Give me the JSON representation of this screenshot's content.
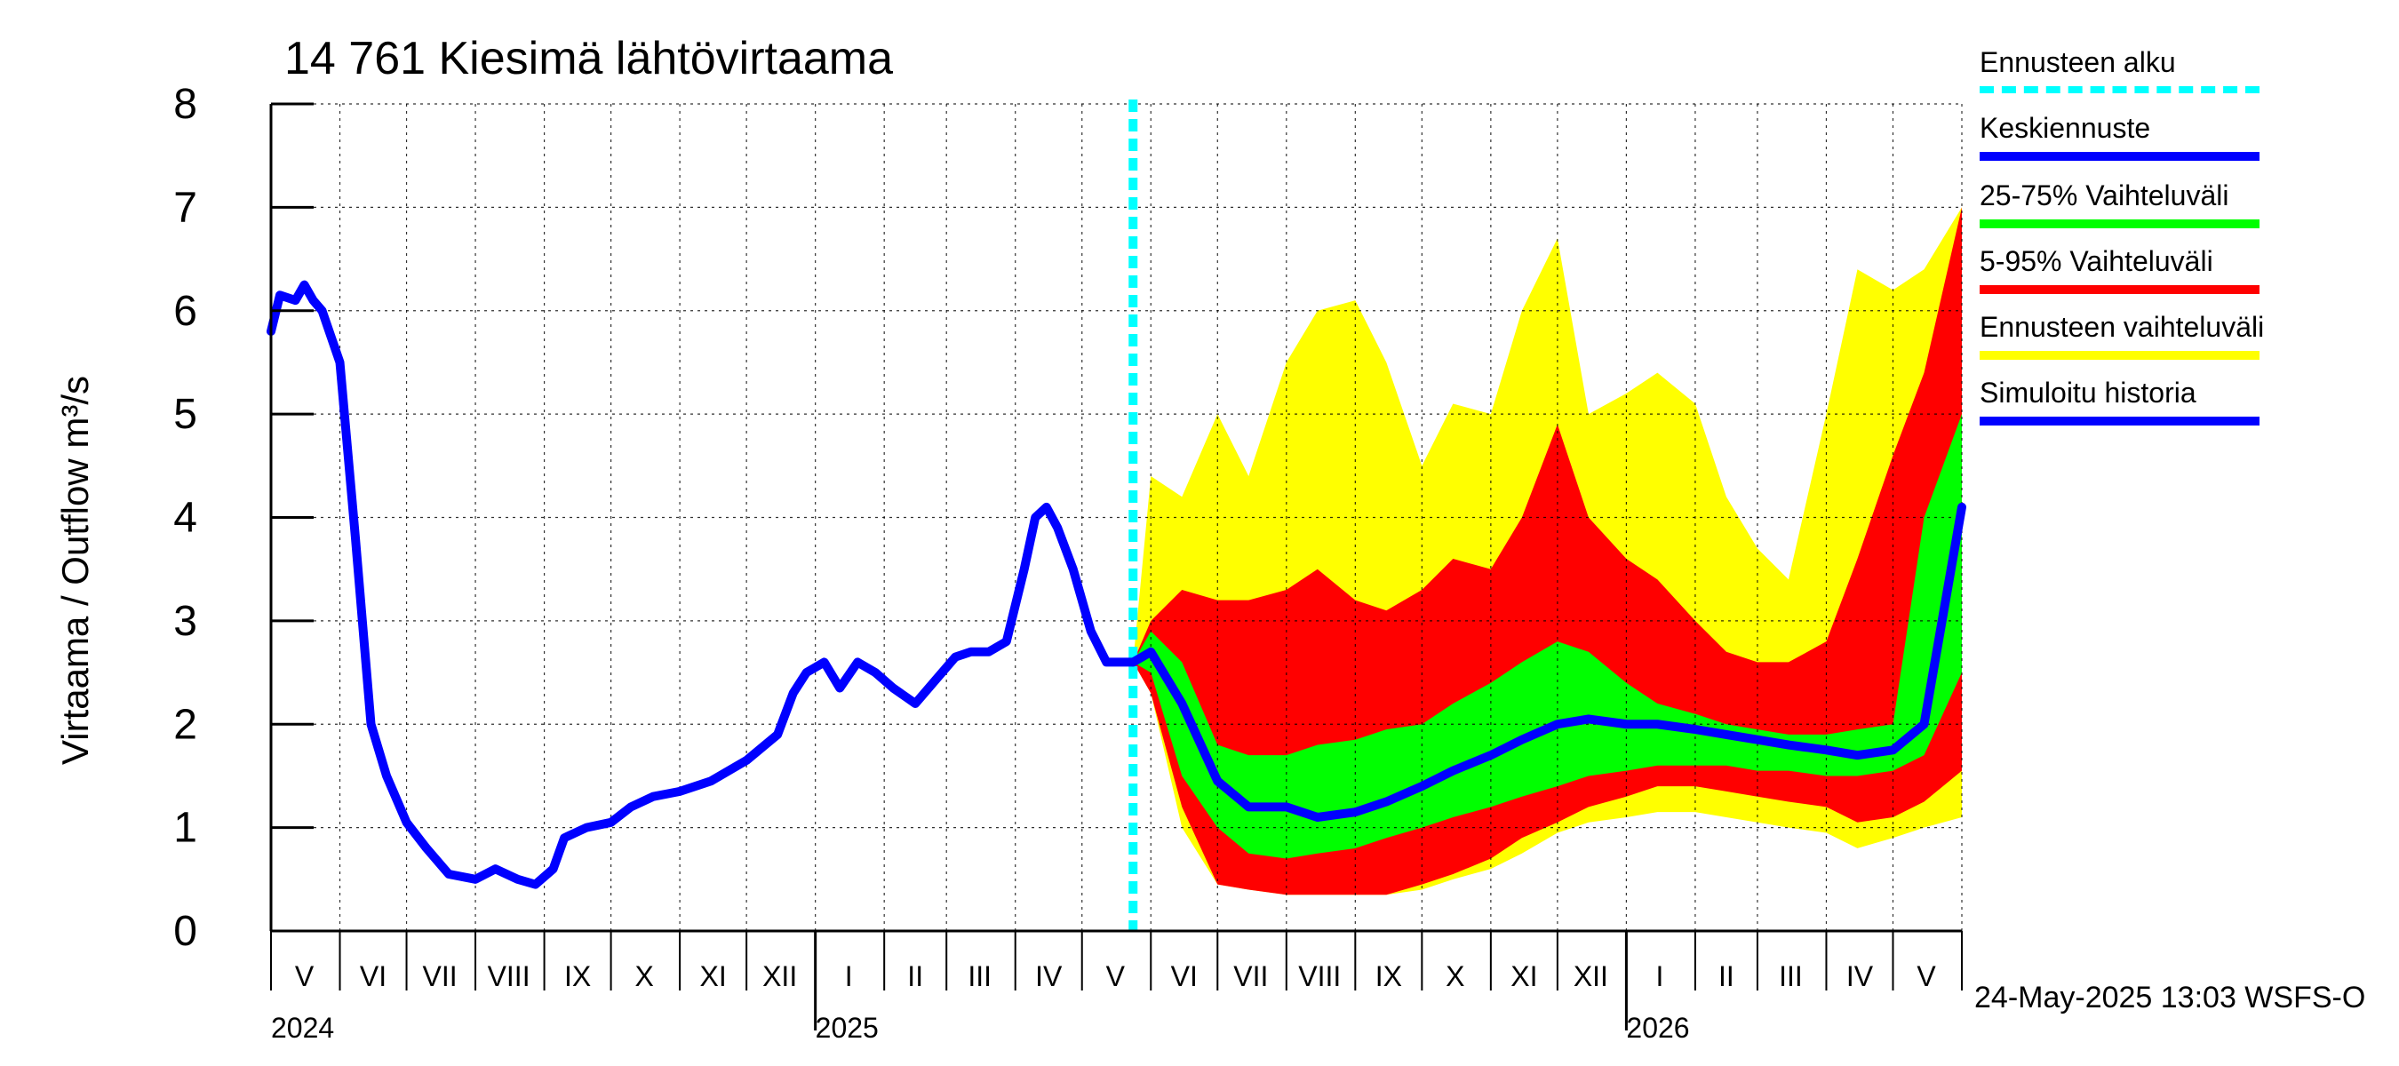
{
  "chart_data": {
    "type": "area",
    "title": "14 761 Kiesimä lähtövirtaama",
    "ylabel": "Virtaama / Outflow    m³/s",
    "ylim": [
      0,
      8
    ],
    "yticks": [
      "0",
      "1",
      "2",
      "3",
      "4",
      "5",
      "6",
      "7",
      "8"
    ],
    "xlim": [
      "2024-05-01",
      "2026-06-01"
    ],
    "grid": true,
    "legend_position": "right",
    "forecast_start": "2025-05-24",
    "month_labels": [
      {
        "label": "V",
        "date": "2024-05-16"
      },
      {
        "label": "VI",
        "date": "2024-06-16"
      },
      {
        "label": "VII",
        "date": "2024-07-16"
      },
      {
        "label": "VIII",
        "date": "2024-08-16"
      },
      {
        "label": "IX",
        "date": "2024-09-16"
      },
      {
        "label": "X",
        "date": "2024-10-16"
      },
      {
        "label": "XI",
        "date": "2024-11-16"
      },
      {
        "label": "XII",
        "date": "2024-12-16"
      },
      {
        "label": "I",
        "date": "2025-01-16"
      },
      {
        "label": "II",
        "date": "2025-02-15"
      },
      {
        "label": "III",
        "date": "2025-03-16"
      },
      {
        "label": "IV",
        "date": "2025-04-16"
      },
      {
        "label": "V",
        "date": "2025-05-16"
      },
      {
        "label": "VI",
        "date": "2025-06-16"
      },
      {
        "label": "VII",
        "date": "2025-07-16"
      },
      {
        "label": "VIII",
        "date": "2025-08-16"
      },
      {
        "label": "IX",
        "date": "2025-09-16"
      },
      {
        "label": "X",
        "date": "2025-10-16"
      },
      {
        "label": "XI",
        "date": "2025-11-16"
      },
      {
        "label": "XII",
        "date": "2025-12-16"
      },
      {
        "label": "I",
        "date": "2026-01-16"
      },
      {
        "label": "II",
        "date": "2026-02-15"
      },
      {
        "label": "III",
        "date": "2026-03-16"
      },
      {
        "label": "IV",
        "date": "2026-04-16"
      },
      {
        "label": "V",
        "date": "2026-05-16"
      }
    ],
    "year_labels": [
      {
        "label": "2024",
        "date": "2024-05-01"
      },
      {
        "label": "2025",
        "date": "2025-01-01"
      },
      {
        "label": "2026",
        "date": "2026-01-01"
      }
    ],
    "forecast_dates": [
      "2025-05-24",
      "2025-06-01",
      "2025-06-15",
      "2025-07-01",
      "2025-07-15",
      "2025-08-01",
      "2025-08-15",
      "2025-09-01",
      "2025-09-15",
      "2025-10-01",
      "2025-10-15",
      "2025-11-01",
      "2025-11-15",
      "2025-12-01",
      "2025-12-15",
      "2026-01-01",
      "2026-01-15",
      "2026-02-01",
      "2026-02-15",
      "2026-03-01",
      "2026-03-15",
      "2026-04-01",
      "2026-04-15",
      "2026-05-01",
      "2026-05-15",
      "2026-06-01"
    ],
    "series": [
      {
        "name": "Ennusteen vaihteluväli",
        "color": "#ffff00",
        "kind": "band",
        "lower": [
          2.6,
          2.3,
          1.0,
          0.45,
          0.4,
          0.35,
          0.35,
          0.35,
          0.35,
          0.4,
          0.5,
          0.6,
          0.75,
          0.95,
          1.05,
          1.1,
          1.15,
          1.15,
          1.1,
          1.05,
          1.0,
          0.95,
          0.8,
          0.9,
          1.0,
          1.1
        ],
        "upper": [
          2.6,
          4.4,
          4.2,
          5.0,
          4.4,
          5.5,
          6.0,
          6.1,
          5.5,
          4.5,
          5.1,
          5.0,
          6.0,
          6.7,
          5.0,
          5.2,
          5.4,
          5.1,
          4.2,
          3.7,
          3.4,
          5.0,
          6.4,
          6.2,
          6.4,
          7.0
        ]
      },
      {
        "name": "5-95% Vaihteluväli",
        "color": "#ff0000",
        "kind": "band",
        "lower": [
          2.6,
          2.3,
          1.2,
          0.45,
          0.4,
          0.35,
          0.35,
          0.35,
          0.35,
          0.45,
          0.55,
          0.7,
          0.9,
          1.05,
          1.2,
          1.3,
          1.4,
          1.4,
          1.35,
          1.3,
          1.25,
          1.2,
          1.05,
          1.1,
          1.25,
          1.55
        ],
        "upper": [
          2.6,
          3.0,
          3.3,
          3.2,
          3.2,
          3.3,
          3.5,
          3.2,
          3.1,
          3.3,
          3.6,
          3.5,
          4.0,
          4.9,
          4.0,
          3.6,
          3.4,
          3.0,
          2.7,
          2.6,
          2.6,
          2.8,
          3.6,
          4.6,
          5.4,
          7.0
        ]
      },
      {
        "name": "25-75% Vaihteluväli",
        "color": "#00ff00",
        "kind": "band",
        "lower": [
          2.6,
          2.5,
          1.5,
          1.0,
          0.75,
          0.7,
          0.75,
          0.8,
          0.9,
          1.0,
          1.1,
          1.2,
          1.3,
          1.4,
          1.5,
          1.55,
          1.6,
          1.6,
          1.6,
          1.55,
          1.55,
          1.5,
          1.5,
          1.55,
          1.7,
          2.5
        ],
        "upper": [
          2.6,
          2.9,
          2.6,
          1.8,
          1.7,
          1.7,
          1.8,
          1.85,
          1.95,
          2.0,
          2.2,
          2.4,
          2.6,
          2.8,
          2.7,
          2.4,
          2.2,
          2.1,
          2.0,
          1.95,
          1.9,
          1.9,
          1.95,
          2.0,
          4.0,
          5.0
        ]
      },
      {
        "name": "Keskiennuste",
        "color": "#0000ff",
        "kind": "line",
        "values": [
          2.6,
          2.7,
          2.2,
          1.45,
          1.2,
          1.2,
          1.1,
          1.15,
          1.25,
          1.4,
          1.55,
          1.7,
          1.85,
          2.0,
          2.05,
          2.0,
          2.0,
          1.95,
          1.9,
          1.85,
          1.8,
          1.75,
          1.7,
          1.75,
          2.0,
          4.1
        ]
      },
      {
        "name": "Simuloitu historia",
        "color": "#0000ff",
        "kind": "line",
        "dates": [
          "2024-05-01",
          "2024-05-05",
          "2024-05-12",
          "2024-05-16",
          "2024-05-20",
          "2024-05-24",
          "2024-06-01",
          "2024-06-08",
          "2024-06-15",
          "2024-06-22",
          "2024-07-01",
          "2024-07-10",
          "2024-07-20",
          "2024-08-01",
          "2024-08-10",
          "2024-08-20",
          "2024-08-28",
          "2024-09-05",
          "2024-09-10",
          "2024-09-20",
          "2024-10-01",
          "2024-10-10",
          "2024-10-20",
          "2024-11-01",
          "2024-11-15",
          "2024-12-01",
          "2024-12-15",
          "2024-12-22",
          "2024-12-28",
          "2025-01-05",
          "2025-01-12",
          "2025-01-20",
          "2025-01-28",
          "2025-02-05",
          "2025-02-15",
          "2025-02-25",
          "2025-03-05",
          "2025-03-12",
          "2025-03-20",
          "2025-03-28",
          "2025-04-05",
          "2025-04-10",
          "2025-04-15",
          "2025-04-20",
          "2025-04-27",
          "2025-05-05",
          "2025-05-12",
          "2025-05-18",
          "2025-05-24"
        ],
        "values": [
          5.8,
          6.15,
          6.1,
          6.25,
          6.1,
          6.0,
          5.5,
          3.8,
          2.0,
          1.5,
          1.05,
          0.8,
          0.55,
          0.5,
          0.6,
          0.5,
          0.45,
          0.6,
          0.9,
          1.0,
          1.05,
          1.2,
          1.3,
          1.35,
          1.45,
          1.65,
          1.9,
          2.3,
          2.5,
          2.6,
          2.35,
          2.6,
          2.5,
          2.35,
          2.2,
          2.45,
          2.65,
          2.7,
          2.7,
          2.8,
          3.5,
          4.0,
          4.1,
          3.9,
          3.5,
          2.9,
          2.6,
          2.6,
          2.6
        ]
      }
    ]
  },
  "legend": [
    {
      "label": "Ennusteen alku",
      "color": "#00ffff",
      "style": "dashed"
    },
    {
      "label": "Keskiennuste",
      "color": "#0000ff",
      "style": "solid"
    },
    {
      "label": "25-75% Vaihteluväli",
      "color": "#00ff00",
      "style": "solid"
    },
    {
      "label": "5-95% Vaihteluväli",
      "color": "#ff0000",
      "style": "solid"
    },
    {
      "label": "Ennusteen vaihteluväli",
      "color": "#ffff00",
      "style": "solid"
    },
    {
      "label": "Simuloitu historia",
      "color": "#0000ff",
      "style": "solid"
    }
  ],
  "timestamp": "24-May-2025 13:03 WSFS-O"
}
